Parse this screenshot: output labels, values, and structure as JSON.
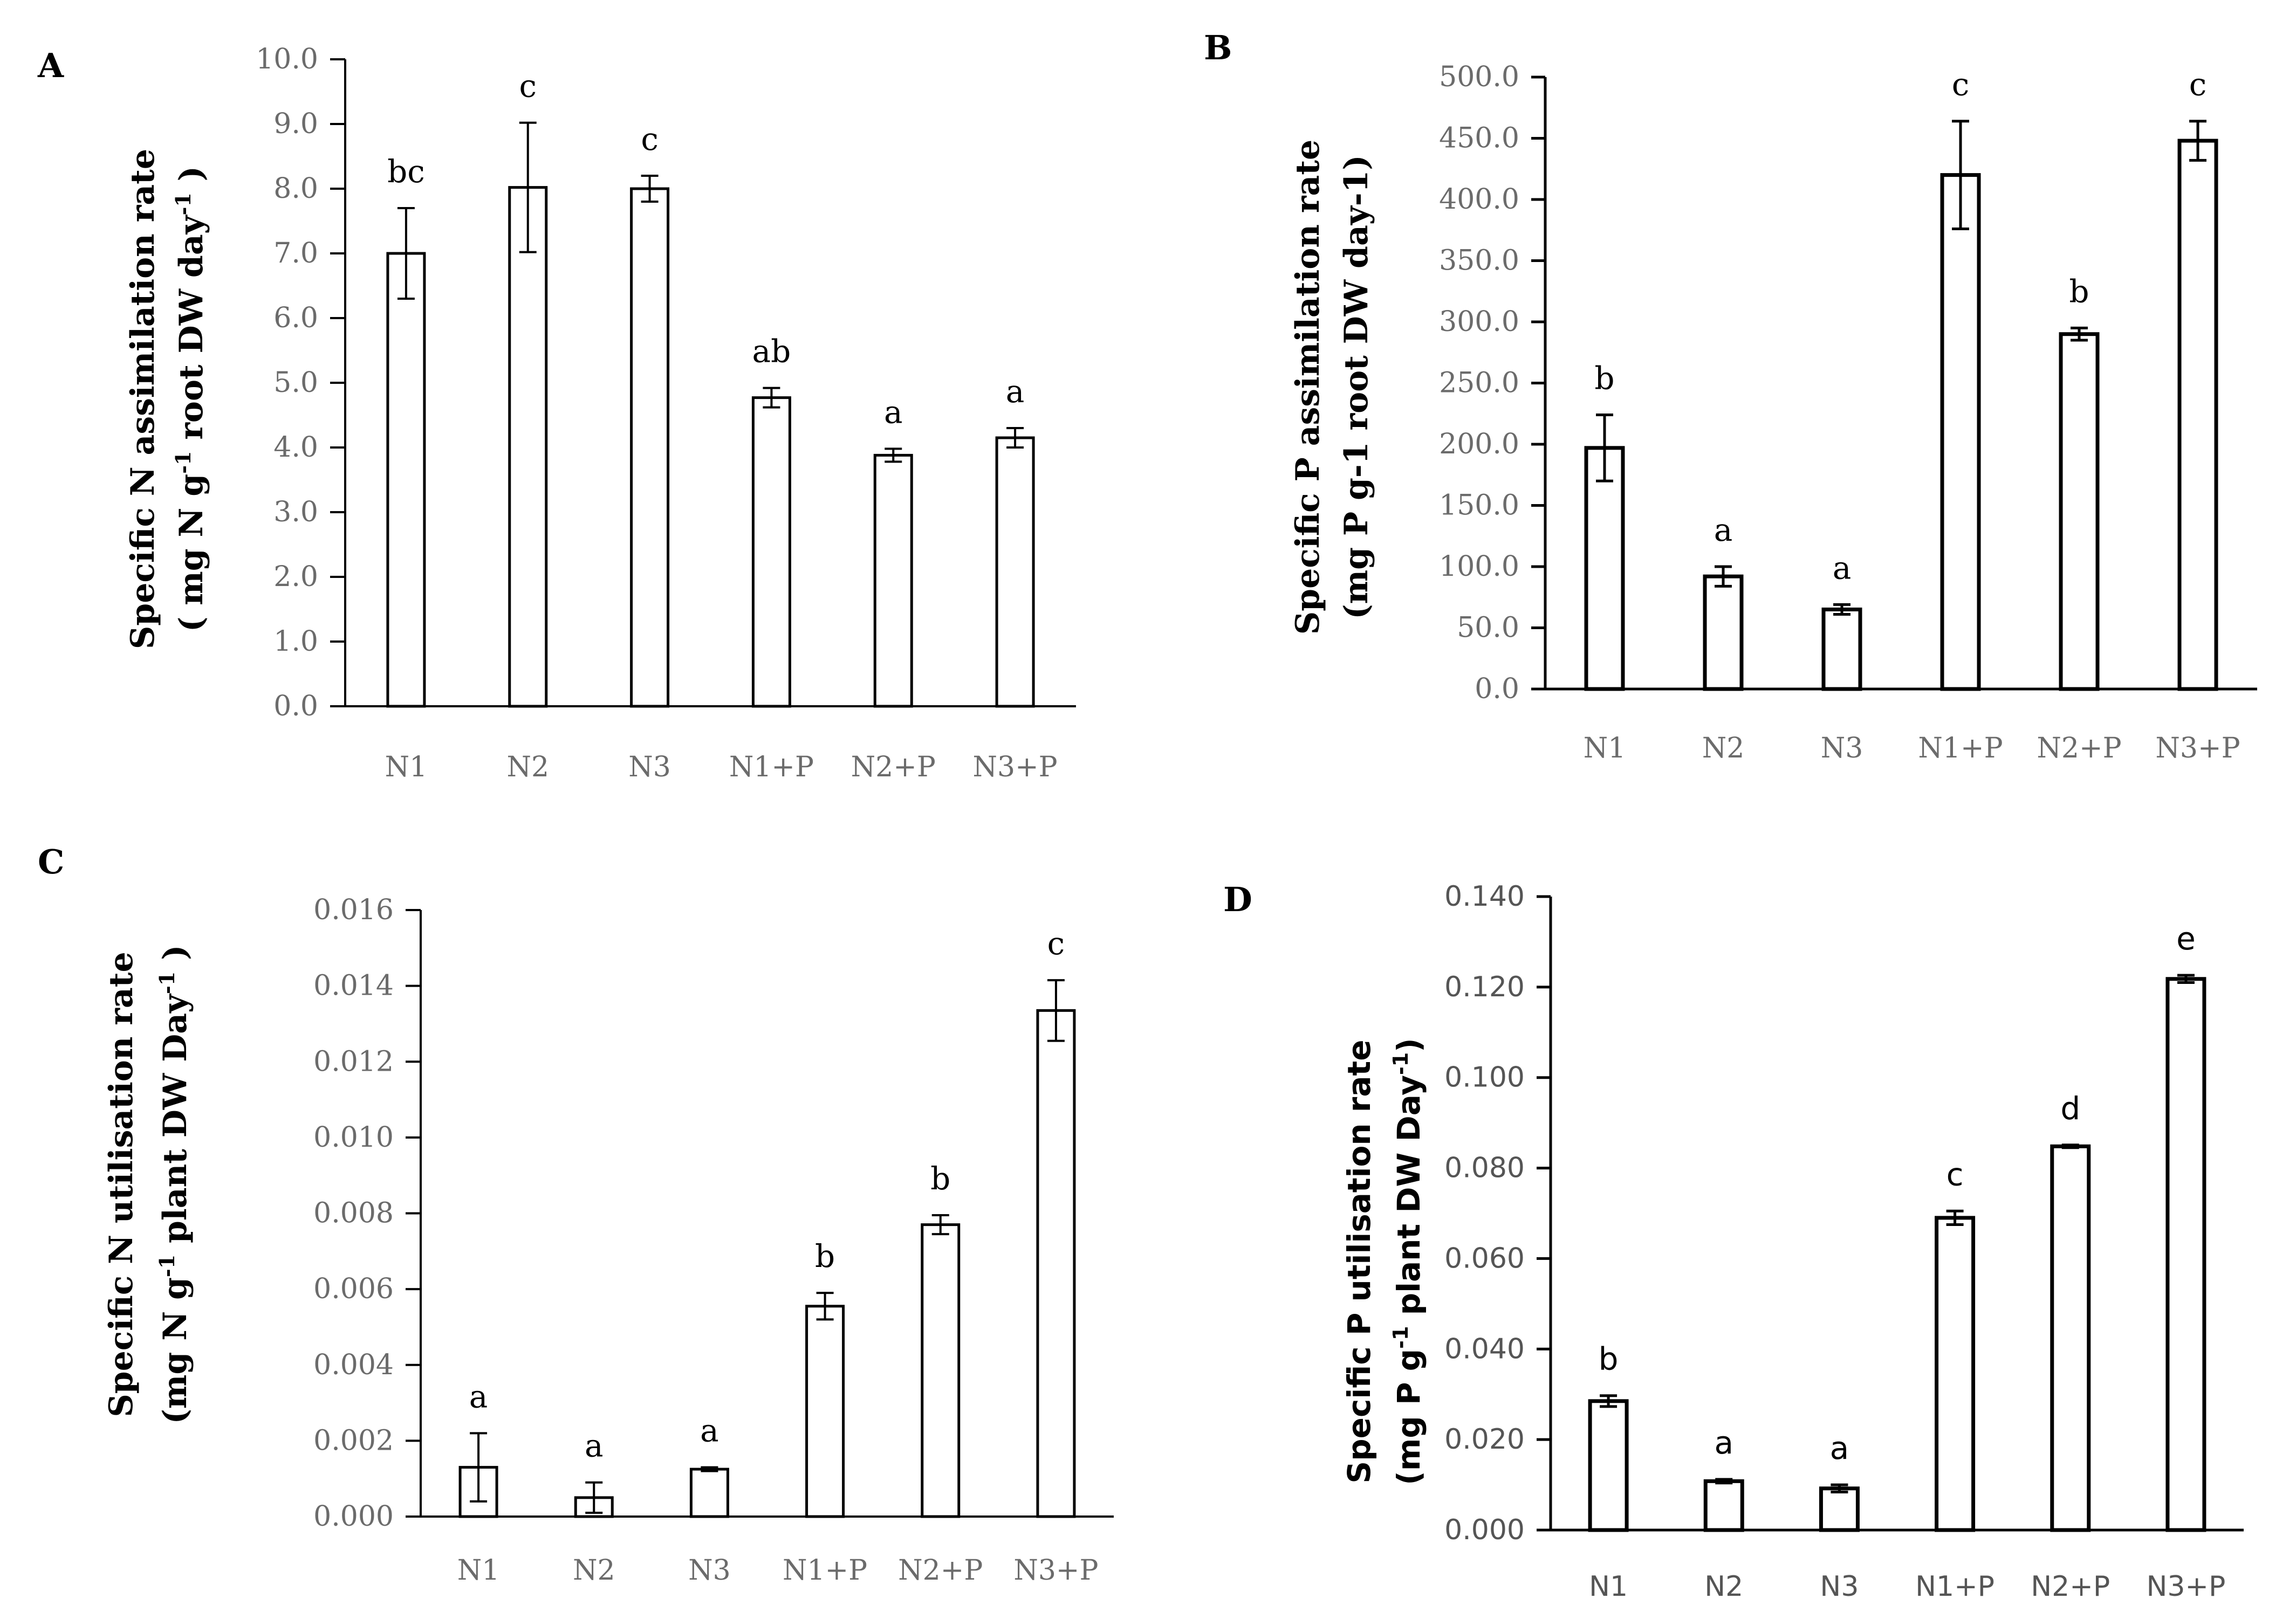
{
  "chart_data": [
    {
      "panel": "A",
      "type": "bar",
      "title": "",
      "categories": [
        "N1",
        "N2",
        "N3",
        "N1+P",
        "N2+P",
        "N3+P"
      ],
      "values": [
        7.0,
        8.02,
        8.0,
        4.77,
        3.88,
        4.15
      ],
      "errors": [
        0.7,
        1.0,
        0.2,
        0.15,
        0.1,
        0.15
      ],
      "significance": [
        "bc",
        "c",
        "c",
        "ab",
        "a",
        "a"
      ],
      "ylabel_main": "Specific N assimilation rate",
      "ylabel_units": [
        "( mg N g",
        "-1",
        " root DW day",
        "-1",
        " )"
      ],
      "xlabel": "",
      "ylim": [
        0,
        10
      ],
      "yticks": [
        "0.0",
        "1.0",
        "2.0",
        "3.0",
        "4.0",
        "5.0",
        "6.0",
        "7.0",
        "8.0",
        "9.0",
        "10.0"
      ]
    },
    {
      "panel": "B",
      "type": "bar",
      "title": "",
      "categories": [
        "N1",
        "N2",
        "N3",
        "N1+P",
        "N2+P",
        "N3+P"
      ],
      "values": [
        197,
        92,
        65,
        420,
        290,
        448
      ],
      "errors": [
        27,
        8,
        4,
        44,
        5,
        16
      ],
      "significance": [
        "b",
        "a",
        "a",
        "c",
        "b",
        "c"
      ],
      "ylabel_main": "Specific P assimilation rate",
      "ylabel_units": [
        "(mg P g-1 root DW day-1)"
      ],
      "xlabel": "",
      "ylim": [
        0,
        500
      ],
      "yticks": [
        "0.0",
        "50.0",
        "100.0",
        "150.0",
        "200.0",
        "250.0",
        "300.0",
        "350.0",
        "400.0",
        "450.0",
        "500.0"
      ]
    },
    {
      "panel": "C",
      "type": "bar",
      "title": "",
      "categories": [
        "N1",
        "N2",
        "N3",
        "N1+P",
        "N2+P",
        "N3+P"
      ],
      "values": [
        0.0013,
        0.0005,
        0.00125,
        0.00555,
        0.0077,
        0.01335
      ],
      "errors": [
        0.0009,
        0.0004,
        5e-05,
        0.00035,
        0.00025,
        0.0008
      ],
      "significance": [
        "a",
        "a",
        "a",
        "b",
        "b",
        "c"
      ],
      "ylabel_main": "Specific N utilisation rate",
      "ylabel_units": [
        "(mg N g",
        "-1",
        " plant DW Day",
        "-1",
        " )"
      ],
      "xlabel": "",
      "ylim": [
        0,
        0.016
      ],
      "yticks": [
        "0.000",
        "0.002",
        "0.004",
        "0.006",
        "0.008",
        "0.010",
        "0.012",
        "0.014",
        "0.016"
      ]
    },
    {
      "panel": "D",
      "type": "bar",
      "title": "",
      "categories": [
        "N1",
        "N2",
        "N3",
        "N1+P",
        "N2+P",
        "N3+P"
      ],
      "values": [
        0.0285,
        0.0108,
        0.0092,
        0.069,
        0.0848,
        0.1218
      ],
      "errors": [
        0.0012,
        0.0004,
        0.0008,
        0.0015,
        0.0003,
        0.0008
      ],
      "significance": [
        "b",
        "a",
        "a",
        "c",
        "d",
        "e"
      ],
      "ylabel_main": "Specific P utilisation rate",
      "ylabel_units": [
        "(mg P g",
        "-1",
        " plant DW Day",
        "-1",
        ")"
      ],
      "xlabel": "",
      "ylim": [
        0,
        0.14
      ],
      "yticks": [
        "0.000",
        "0.020",
        "0.040",
        "0.060",
        "0.080",
        "0.100",
        "0.120",
        "0.140"
      ]
    }
  ]
}
